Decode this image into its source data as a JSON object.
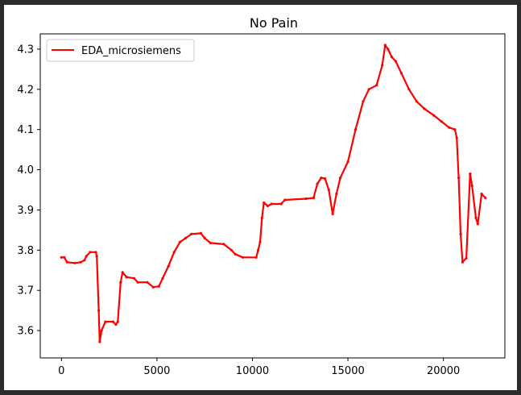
{
  "chart_data": {
    "type": "line",
    "title": "No Pain",
    "xlabel": "",
    "ylabel": "",
    "xlim": [
      -1110,
      23220
    ],
    "ylim": [
      3.532,
      4.338
    ],
    "xticks": [
      0,
      5000,
      10000,
      15000,
      20000
    ],
    "yticks": [
      3.6,
      3.7,
      3.8,
      3.9,
      4.0,
      4.1,
      4.2,
      4.3
    ],
    "legend_position": "upper-left",
    "grid": false,
    "series": [
      {
        "name": "EDA_microsiemens",
        "color": "#ff0000",
        "points": [
          [
            0,
            3.782
          ],
          [
            150,
            3.782
          ],
          [
            300,
            3.77
          ],
          [
            700,
            3.768
          ],
          [
            1000,
            3.77
          ],
          [
            1200,
            3.775
          ],
          [
            1300,
            3.785
          ],
          [
            1500,
            3.795
          ],
          [
            1800,
            3.795
          ],
          [
            1850,
            3.785
          ],
          [
            1950,
            3.65
          ],
          [
            2000,
            3.572
          ],
          [
            2100,
            3.6
          ],
          [
            2300,
            3.622
          ],
          [
            2700,
            3.622
          ],
          [
            2850,
            3.615
          ],
          [
            2950,
            3.622
          ],
          [
            3100,
            3.72
          ],
          [
            3200,
            3.745
          ],
          [
            3400,
            3.733
          ],
          [
            3800,
            3.73
          ],
          [
            4000,
            3.72
          ],
          [
            4500,
            3.72
          ],
          [
            4800,
            3.708
          ],
          [
            5100,
            3.71
          ],
          [
            5300,
            3.73
          ],
          [
            5600,
            3.76
          ],
          [
            5900,
            3.795
          ],
          [
            6200,
            3.82
          ],
          [
            6500,
            3.83
          ],
          [
            6800,
            3.84
          ],
          [
            7300,
            3.842
          ],
          [
            7500,
            3.83
          ],
          [
            7800,
            3.818
          ],
          [
            8500,
            3.815
          ],
          [
            8900,
            3.8
          ],
          [
            9100,
            3.79
          ],
          [
            9500,
            3.782
          ],
          [
            10200,
            3.782
          ],
          [
            10300,
            3.8
          ],
          [
            10400,
            3.82
          ],
          [
            10500,
            3.88
          ],
          [
            10600,
            3.918
          ],
          [
            10800,
            3.91
          ],
          [
            11000,
            3.915
          ],
          [
            11500,
            3.915
          ],
          [
            11700,
            3.925
          ],
          [
            12800,
            3.928
          ],
          [
            13200,
            3.93
          ],
          [
            13400,
            3.965
          ],
          [
            13600,
            3.98
          ],
          [
            13800,
            3.978
          ],
          [
            14000,
            3.95
          ],
          [
            14200,
            3.89
          ],
          [
            14400,
            3.94
          ],
          [
            14600,
            3.98
          ],
          [
            15000,
            4.02
          ],
          [
            15400,
            4.1
          ],
          [
            15800,
            4.17
          ],
          [
            16100,
            4.2
          ],
          [
            16500,
            4.21
          ],
          [
            16800,
            4.26
          ],
          [
            16950,
            4.31
          ],
          [
            17100,
            4.3
          ],
          [
            17300,
            4.28
          ],
          [
            17500,
            4.27
          ],
          [
            17800,
            4.24
          ],
          [
            18200,
            4.2
          ],
          [
            18600,
            4.17
          ],
          [
            19000,
            4.152
          ],
          [
            19500,
            4.135
          ],
          [
            19900,
            4.12
          ],
          [
            20300,
            4.105
          ],
          [
            20600,
            4.1
          ],
          [
            20700,
            4.08
          ],
          [
            20800,
            3.98
          ],
          [
            20900,
            3.84
          ],
          [
            21000,
            3.77
          ],
          [
            21200,
            3.78
          ],
          [
            21400,
            3.99
          ],
          [
            21500,
            3.96
          ],
          [
            21700,
            3.88
          ],
          [
            21800,
            3.865
          ],
          [
            22000,
            3.94
          ],
          [
            22200,
            3.93
          ]
        ]
      }
    ]
  }
}
